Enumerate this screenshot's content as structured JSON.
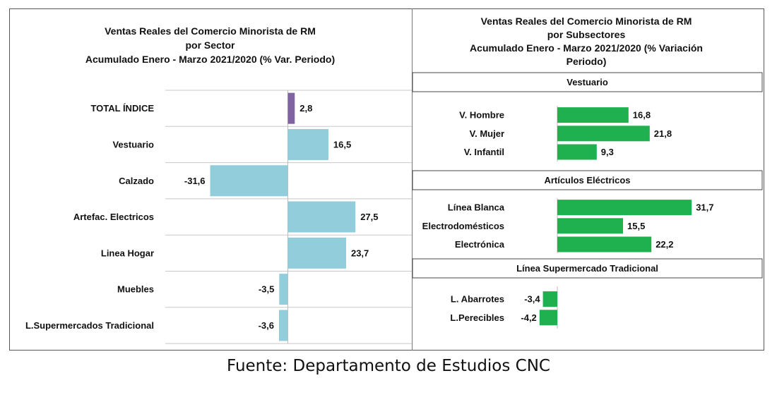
{
  "source": "Fuente: Departamento de Estudios CNC",
  "colors": {
    "total_bar": "#8064a2",
    "sector_bar": "#92cddc",
    "subsector_bar": "#1fb050",
    "grid": "#c8c8c8"
  },
  "chart_data": [
    {
      "type": "bar",
      "orientation": "horizontal",
      "title": [
        "Ventas Reales del Comercio Minorista de RM",
        "por Sector",
        "Acumulado Enero - Marzo 2021/2020 (% Var. Periodo)"
      ],
      "categories": [
        "TOTAL ÍNDICE",
        "Vestuario",
        "Calzado",
        "Artefac. Electricos",
        "Linea Hogar",
        "Muebles",
        "L.Supermercados Tradicional"
      ],
      "values": [
        2.8,
        16.5,
        -31.6,
        27.5,
        23.7,
        -3.5,
        -3.6
      ],
      "value_labels": [
        "2,8",
        "16,5",
        "-31,6",
        "27,5",
        "23,7",
        "-3,5",
        "-3,6"
      ],
      "bar_colors": [
        "#8064a2",
        "#92cddc",
        "#92cddc",
        "#92cddc",
        "#92cddc",
        "#92cddc",
        "#92cddc"
      ],
      "grid": true
    },
    {
      "type": "bar",
      "orientation": "horizontal",
      "title": [
        "Ventas Reales del Comercio Minorista de RM",
        "por Subsectores",
        "Acumulado Enero - Marzo 2021/2020 (% Variación",
        "Periodo)"
      ],
      "groups": [
        {
          "name": "Vestuario",
          "categories": [
            "V. Hombre",
            "V. Mujer",
            "V. Infantil"
          ],
          "values": [
            16.8,
            21.8,
            9.3
          ],
          "value_labels": [
            "16,8",
            "21,8",
            "9,3"
          ]
        },
        {
          "name": "Artículos Eléctricos",
          "categories": [
            "Línea Blanca",
            "Electrodomésticos",
            "Electrónica"
          ],
          "values": [
            31.7,
            15.5,
            22.2
          ],
          "value_labels": [
            "31,7",
            "15,5",
            "22,2"
          ]
        },
        {
          "name": "Línea  Supermercado Tradicional",
          "categories": [
            "L. Abarrotes",
            "L.Perecibles"
          ],
          "values": [
            -3.4,
            -4.2
          ],
          "value_labels": [
            "-3,4",
            "-4,2"
          ]
        }
      ],
      "grid": true
    }
  ]
}
